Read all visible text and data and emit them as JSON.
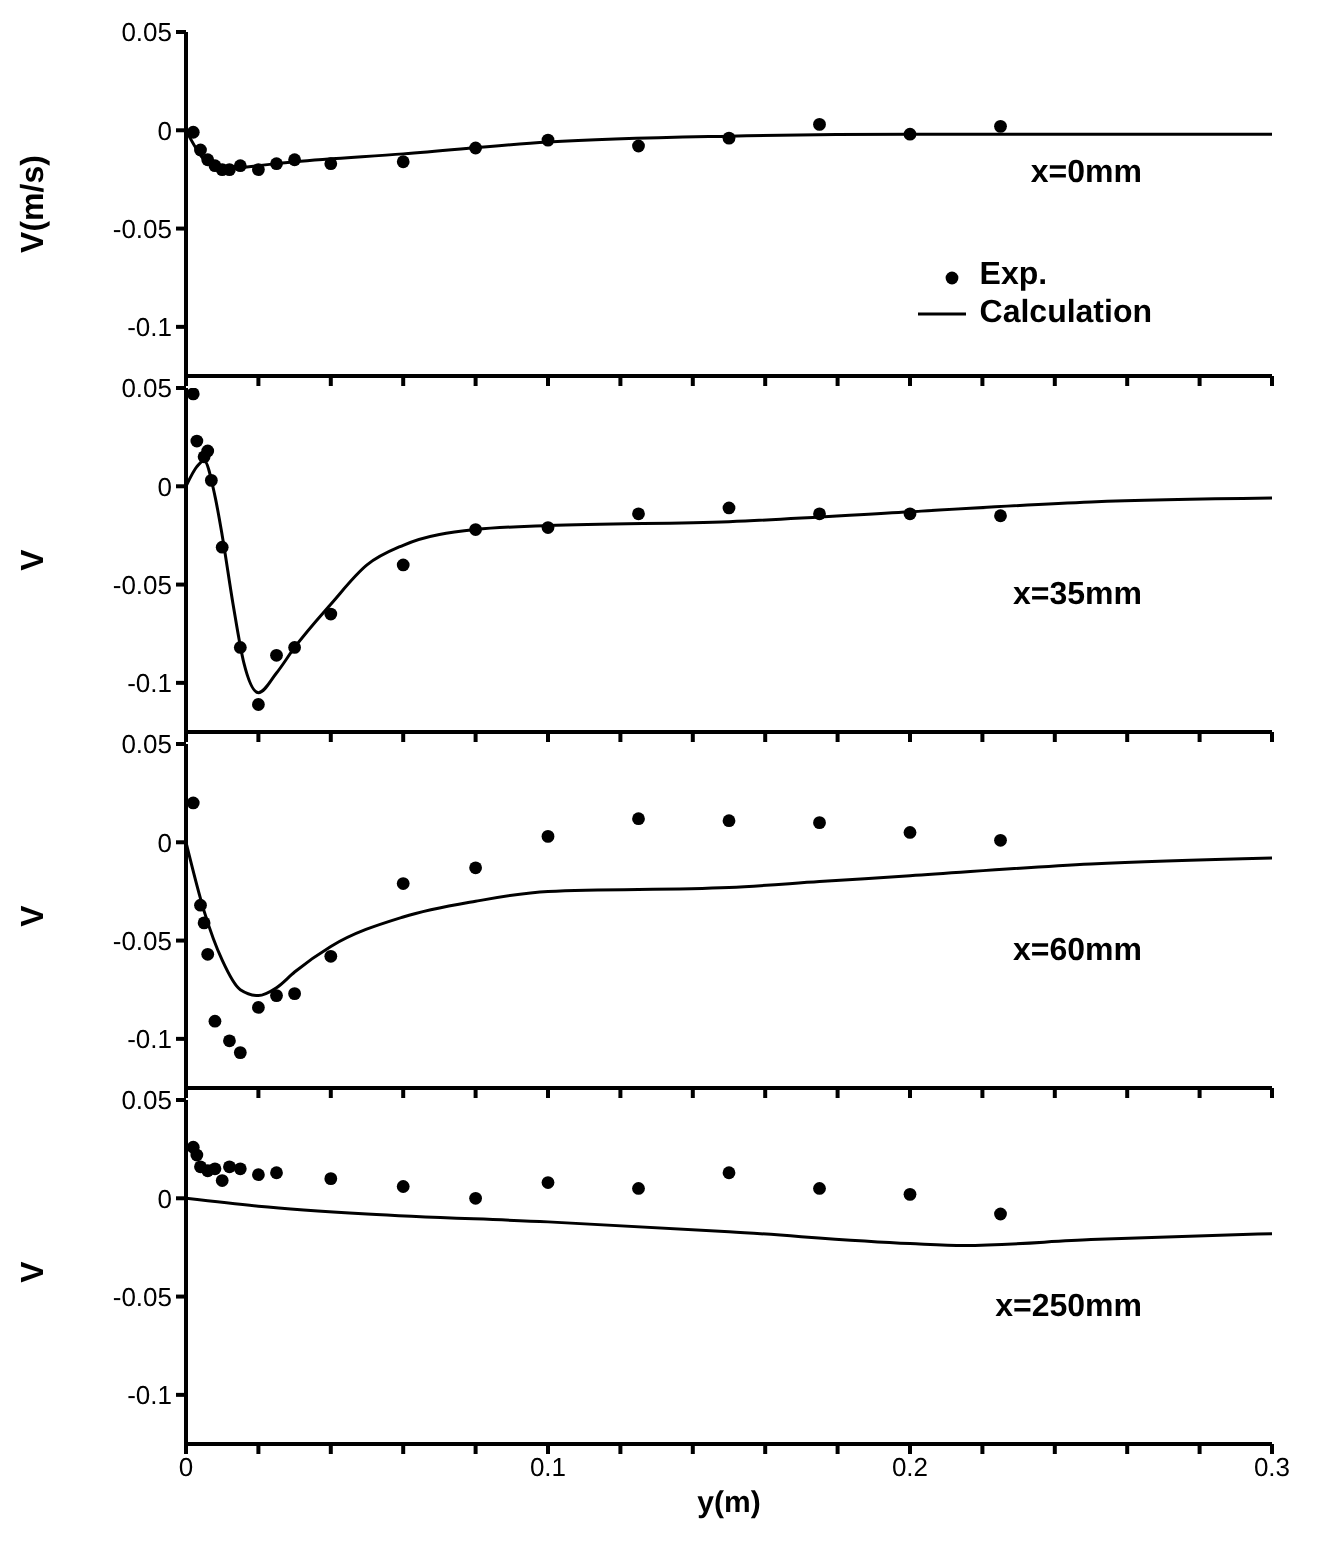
{
  "chart_data": [
    {
      "type": "scatter",
      "ylabel": "V(m/s)",
      "annotations": [
        "x=0mm"
      ],
      "legend": "right",
      "tick_labels": "y",
      "xlim": [
        0,
        0.3
      ],
      "xticks": [
        0,
        {
          "value": 0.02,
          "label": null
        },
        {
          "value": 0.04,
          "label": null
        },
        {
          "value": 0.06,
          "label": null
        },
        {
          "value": 0.08,
          "label": null
        },
        0.1,
        {
          "value": 0.12,
          "label": null
        },
        {
          "value": 0.14,
          "label": null
        },
        {
          "value": 0.16,
          "label": null
        },
        {
          "value": 0.18,
          "label": null
        },
        0.2,
        {
          "value": 0.22,
          "label": null
        },
        {
          "value": 0.24,
          "label": null
        },
        {
          "value": 0.26,
          "label": null
        },
        {
          "value": 0.28,
          "label": null
        },
        0.3
      ],
      "ylim": [
        -0.125,
        0.05
      ],
      "yticks": [
        0.05,
        0,
        -0.05,
        -0.1
      ],
      "series": [
        {
          "name": "Exp.",
          "marker": "circle",
          "color": "#000000",
          "x": [
            0.002,
            0.004,
            0.006,
            0.008,
            0.01,
            0.012,
            0.015,
            0.02,
            0.025,
            0.03,
            0.04,
            0.06,
            0.08,
            0.1,
            0.125,
            0.15,
            0.175,
            0.2,
            0.225
          ],
          "values": [
            -0.001,
            -0.01,
            -0.015,
            -0.018,
            -0.02,
            -0.02,
            -0.018,
            -0.02,
            -0.017,
            -0.015,
            -0.017,
            -0.016,
            -0.009,
            -0.005,
            -0.008,
            -0.004,
            0.003,
            -0.002,
            0.002
          ]
        },
        {
          "name": "Calculation",
          "type": "line",
          "marker": "none",
          "color": "#000000",
          "x": [
            0,
            0.005,
            0.01,
            0.015,
            0.03,
            0.06,
            0.1,
            0.15,
            0.2,
            0.3
          ],
          "values": [
            0,
            -0.015,
            -0.02,
            -0.019,
            -0.016,
            -0.012,
            -0.006,
            -0.003,
            -0.002,
            -0.002
          ]
        }
      ]
    },
    {
      "type": "scatter",
      "ylabel": "V",
      "annotations": [
        "x=35mm"
      ],
      "tick_labels": "y",
      "xlim": [
        0,
        0.3
      ],
      "xticks": [
        0,
        {
          "value": 0.02,
          "label": null
        },
        {
          "value": 0.04,
          "label": null
        },
        {
          "value": 0.06,
          "label": null
        },
        {
          "value": 0.08,
          "label": null
        },
        0.1,
        {
          "value": 0.12,
          "label": null
        },
        {
          "value": 0.14,
          "label": null
        },
        {
          "value": 0.16,
          "label": null
        },
        {
          "value": 0.18,
          "label": null
        },
        0.2,
        {
          "value": 0.22,
          "label": null
        },
        {
          "value": 0.24,
          "label": null
        },
        {
          "value": 0.26,
          "label": null
        },
        {
          "value": 0.28,
          "label": null
        },
        0.3
      ],
      "ylim": [
        -0.125,
        0.05
      ],
      "yticks": [
        0.05,
        0,
        -0.05,
        -0.1
      ],
      "series": [
        {
          "marker": "circle",
          "color": "#000000",
          "x": [
            0.002,
            0.003,
            0.005,
            0.006,
            0.007,
            0.01,
            0.015,
            0.02,
            0.025,
            0.03,
            0.04,
            0.06,
            0.08,
            0.1,
            0.125,
            0.15,
            0.175,
            0.2,
            0.225
          ],
          "values": [
            0.047,
            0.023,
            0.015,
            0.018,
            0.003,
            -0.031,
            -0.082,
            -0.111,
            -0.086,
            -0.082,
            -0.065,
            -0.04,
            -0.022,
            -0.021,
            -0.014,
            -0.011,
            -0.014,
            -0.014,
            -0.015
          ]
        },
        {
          "type": "line",
          "marker": "none",
          "color": "#000000",
          "x": [
            0,
            0.003,
            0.005,
            0.008,
            0.01,
            0.013,
            0.016,
            0.02,
            0.025,
            0.03,
            0.04,
            0.05,
            0.06,
            0.08,
            0.1,
            0.15,
            0.2,
            0.25,
            0.3
          ],
          "values": [
            0,
            0.01,
            0.013,
            -0.005,
            -0.025,
            -0.06,
            -0.09,
            -0.105,
            -0.095,
            -0.082,
            -0.06,
            -0.04,
            -0.03,
            -0.022,
            -0.02,
            -0.018,
            -0.013,
            -0.008,
            -0.006
          ]
        }
      ]
    },
    {
      "type": "scatter",
      "ylabel": "V",
      "annotations": [
        "x=60mm"
      ],
      "tick_labels": "y",
      "xlim": [
        0,
        0.3
      ],
      "xticks": [
        0,
        {
          "value": 0.02,
          "label": null
        },
        {
          "value": 0.04,
          "label": null
        },
        {
          "value": 0.06,
          "label": null
        },
        {
          "value": 0.08,
          "label": null
        },
        0.1,
        {
          "value": 0.12,
          "label": null
        },
        {
          "value": 0.14,
          "label": null
        },
        {
          "value": 0.16,
          "label": null
        },
        {
          "value": 0.18,
          "label": null
        },
        0.2,
        {
          "value": 0.22,
          "label": null
        },
        {
          "value": 0.24,
          "label": null
        },
        {
          "value": 0.26,
          "label": null
        },
        {
          "value": 0.28,
          "label": null
        },
        0.3
      ],
      "ylim": [
        -0.125,
        0.05
      ],
      "yticks": [
        0.05,
        0,
        -0.05,
        -0.1
      ],
      "series": [
        {
          "marker": "circle",
          "color": "#000000",
          "x": [
            0.002,
            0.004,
            0.005,
            0.006,
            0.008,
            0.012,
            0.015,
            0.02,
            0.025,
            0.03,
            0.04,
            0.06,
            0.08,
            0.1,
            0.125,
            0.15,
            0.175,
            0.2,
            0.225
          ],
          "values": [
            0.02,
            -0.032,
            -0.041,
            -0.057,
            -0.091,
            -0.101,
            -0.107,
            -0.084,
            -0.078,
            -0.077,
            -0.058,
            -0.021,
            -0.013,
            0.003,
            0.012,
            0.011,
            0.01,
            0.005,
            0.001
          ]
        },
        {
          "type": "line",
          "marker": "none",
          "color": "#000000",
          "x": [
            0,
            0.005,
            0.01,
            0.015,
            0.02,
            0.025,
            0.03,
            0.04,
            0.06,
            0.08,
            0.1,
            0.15,
            0.175,
            0.2,
            0.25,
            0.3
          ],
          "values": [
            0,
            -0.035,
            -0.06,
            -0.075,
            -0.078,
            -0.074,
            -0.066,
            -0.053,
            -0.038,
            -0.03,
            -0.025,
            -0.023,
            -0.02,
            -0.017,
            -0.011,
            -0.008
          ]
        }
      ]
    },
    {
      "type": "scatter",
      "ylabel": "V",
      "xlabel": "y(m)",
      "annotations": [
        "x=250mm"
      ],
      "xlim": [
        0,
        0.3
      ],
      "xticks": [
        0,
        {
          "value": 0.02,
          "label": null
        },
        {
          "value": 0.04,
          "label": null
        },
        {
          "value": 0.06,
          "label": null
        },
        {
          "value": 0.08,
          "label": null
        },
        0.1,
        {
          "value": 0.12,
          "label": null
        },
        {
          "value": 0.14,
          "label": null
        },
        {
          "value": 0.16,
          "label": null
        },
        {
          "value": 0.18,
          "label": null
        },
        0.2,
        {
          "value": 0.22,
          "label": null
        },
        {
          "value": 0.24,
          "label": null
        },
        {
          "value": 0.26,
          "label": null
        },
        {
          "value": 0.28,
          "label": null
        },
        0.3
      ],
      "ylim": [
        -0.125,
        0.05
      ],
      "yticks": [
        0.05,
        0,
        -0.05,
        -0.1
      ],
      "series": [
        {
          "marker": "circle",
          "color": "#000000",
          "x": [
            0.002,
            0.003,
            0.004,
            0.006,
            0.008,
            0.01,
            0.012,
            0.015,
            0.02,
            0.025,
            0.04,
            0.06,
            0.08,
            0.1,
            0.125,
            0.15,
            0.175,
            0.2,
            0.225
          ],
          "values": [
            0.026,
            0.022,
            0.016,
            0.014,
            0.015,
            0.009,
            0.016,
            0.015,
            0.012,
            0.013,
            0.01,
            0.006,
            0.0,
            0.008,
            0.005,
            0.013,
            0.005,
            0.002,
            -0.008
          ]
        },
        {
          "type": "line",
          "marker": "none",
          "color": "#000000",
          "x": [
            0,
            0.02,
            0.05,
            0.1,
            0.15,
            0.2,
            0.215,
            0.25,
            0.3
          ],
          "values": [
            0,
            -0.004,
            -0.008,
            -0.012,
            -0.017,
            -0.023,
            -0.024,
            -0.021,
            -0.018
          ]
        }
      ]
    }
  ]
}
